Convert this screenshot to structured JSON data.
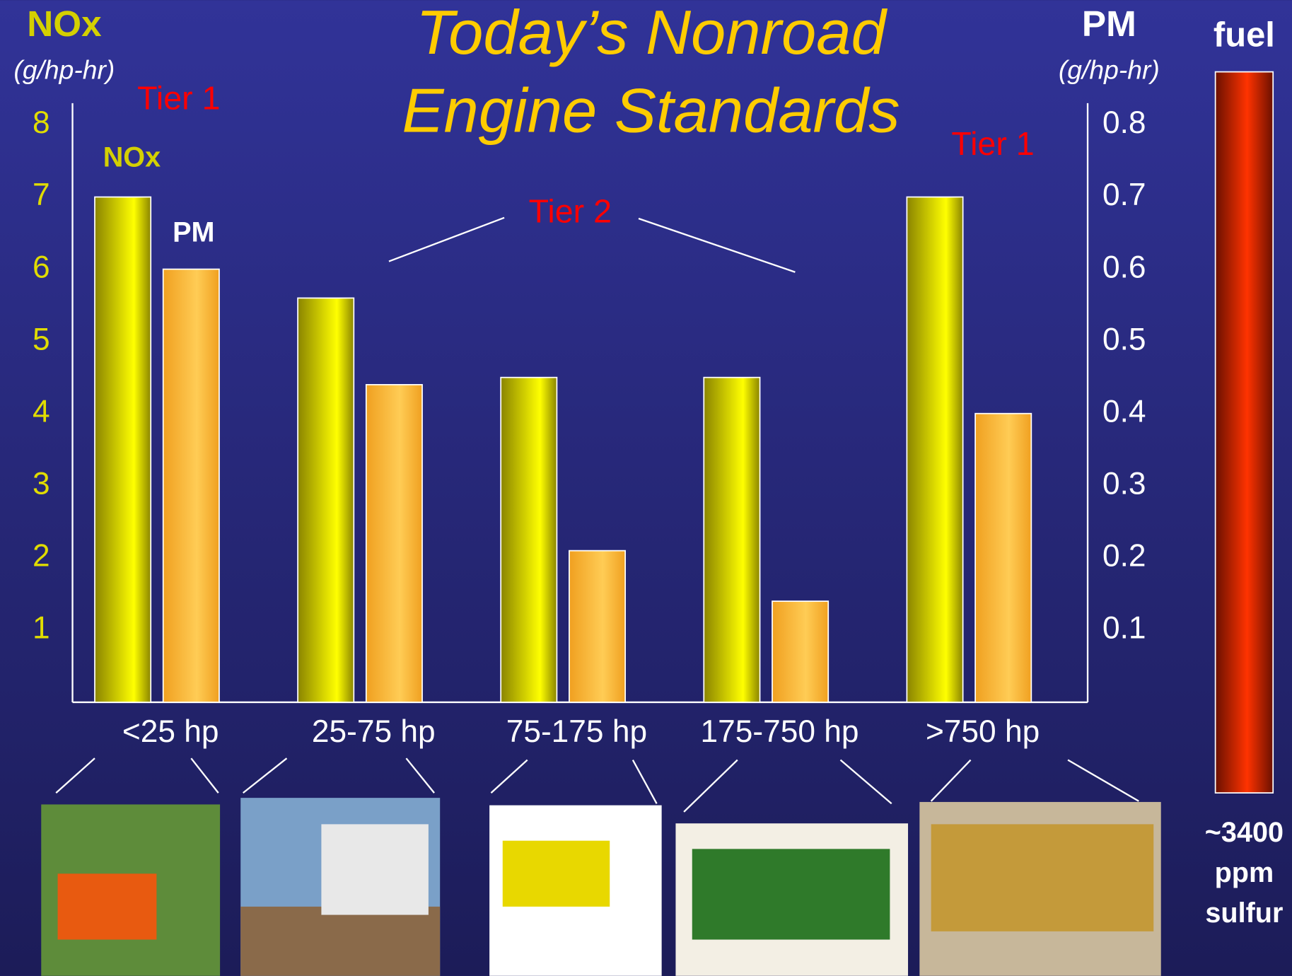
{
  "chart_data": {
    "type": "bar",
    "title": [
      "Today’s Nonroad",
      "Engine Standards"
    ],
    "y_label": "NOx",
    "y_unit": "(g/hp-hr)",
    "y2_label": "PM",
    "y2_unit": "(g/hp-hr)",
    "categories": [
      "<25 hp",
      "25-75 hp",
      "75-175 hp",
      "175-750 hp",
      ">750 hp"
    ],
    "series": [
      {
        "name": "NOx",
        "color": "#ffff00",
        "values": [
          7,
          5.6,
          4.5,
          4.5,
          7
        ]
      },
      {
        "name": "PM",
        "color": "#ffcc55",
        "axis": "y2",
        "values": [
          0.6,
          0.44,
          0.21,
          0.14,
          0.4
        ]
      }
    ],
    "ylim": [
      0,
      8.3
    ],
    "yticks": [
      1,
      2,
      3,
      4,
      5,
      6,
      7,
      8
    ],
    "y2lim": [
      0,
      0.83
    ],
    "y2ticks": [
      0.1,
      0.2,
      0.3,
      0.4,
      0.5,
      0.6,
      0.7,
      0.8
    ],
    "annotations": [
      "Tier 1",
      "Tier 2",
      "Tier 1"
    ]
  },
  "fuel_bar": {
    "label": "fuel",
    "note": [
      "~3400",
      "ppm",
      "sulfur"
    ],
    "color": "#ff3300"
  }
}
